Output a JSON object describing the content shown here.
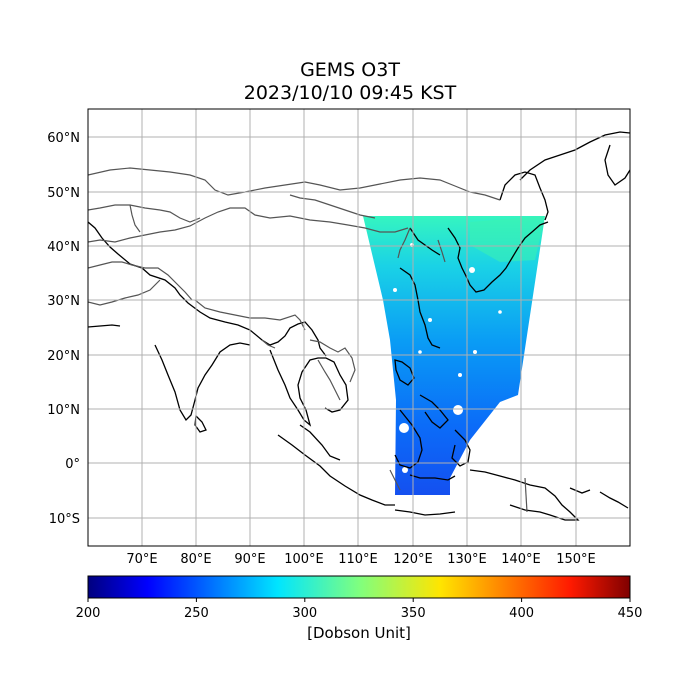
{
  "title": {
    "line1": "GEMS O3T",
    "line2": "2023/10/10 09:45 KST"
  },
  "map": {
    "lon_range": [
      60,
      160
    ],
    "lat_range": [
      -15,
      65
    ],
    "grid": true,
    "lon_ticks": [
      "70°E",
      "80°E",
      "90°E",
      "100°E",
      "110°E",
      "120°E",
      "130°E",
      "140°E",
      "150°E"
    ],
    "lat_ticks": [
      "60°N",
      "50°N",
      "40°N",
      "30°N",
      "20°N",
      "10°N",
      "0°",
      "10°S"
    ]
  },
  "colorbar": {
    "ticks": [
      "200",
      "250",
      "300",
      "350",
      "400",
      "450"
    ],
    "range": [
      200,
      450
    ],
    "label": "[Dobson Unit]",
    "colormap": "jet"
  },
  "colors": {
    "coastline": "#000000",
    "borders": "#555555",
    "grid": "#b0b0b0",
    "swath_low": "#0a55ff",
    "swath_high": "#2ff0c8"
  }
}
